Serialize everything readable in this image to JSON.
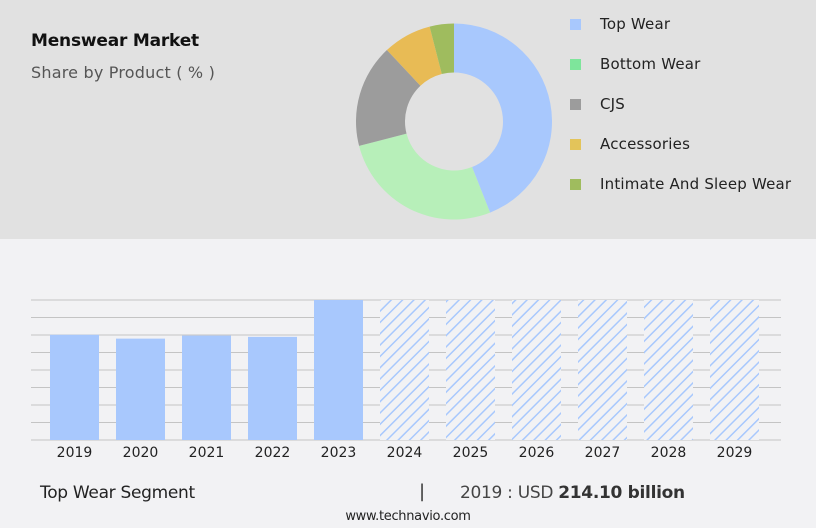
{
  "header": {
    "title": "Menswear Market",
    "subtitle": "Share by Product ( % )"
  },
  "legend": {
    "items": [
      {
        "label": "Top Wear",
        "color": "#a8c8fd"
      },
      {
        "label": "Bottom Wear",
        "color": "#7ee59b"
      },
      {
        "label": "CJS",
        "color": "#9c9c9c"
      },
      {
        "label": "Accessories",
        "color": "#e3c45a"
      },
      {
        "label": "Intimate And Sleep Wear",
        "color": "#9fbc5e"
      }
    ]
  },
  "footer": {
    "segment": "Top Wear Segment",
    "separator": "|",
    "year_prefix": "2019 : USD",
    "value": "214.10 billion",
    "url": "www.technavio.com"
  },
  "chart_data": [
    {
      "type": "pie",
      "title": "Menswear Market",
      "subtitle": "Share by Product ( % )",
      "donut": true,
      "categories": [
        "Top Wear",
        "Bottom Wear",
        "CJS",
        "Accessories",
        "Intimate And Sleep Wear"
      ],
      "values": [
        44,
        27,
        17,
        8,
        4
      ],
      "colors": [
        "#a8c8fd",
        "#b7efb9",
        "#9c9c9c",
        "#e8bb55",
        "#9fbc5e"
      ],
      "legend_position": "right"
    },
    {
      "type": "bar",
      "title": "Top Wear Segment",
      "categories": [
        "2019",
        "2020",
        "2021",
        "2022",
        "2023",
        "2024",
        "2025",
        "2026",
        "2027",
        "2028",
        "2029"
      ],
      "values": [
        214.1,
        206.3,
        212.5,
        209.9,
        284.9,
        null,
        null,
        null,
        null,
        null,
        null
      ],
      "forecast": [
        false,
        false,
        false,
        false,
        false,
        true,
        true,
        true,
        true,
        true,
        true
      ],
      "annotation": "2019 : USD 214.10 billion",
      "xlabel": "",
      "ylabel": "",
      "grid": true,
      "bar_color": "#a8c8fd",
      "forecast_style": "hatched"
    }
  ]
}
